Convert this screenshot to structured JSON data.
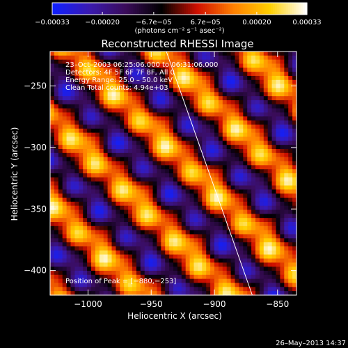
{
  "chart_data": {
    "type": "heatmap",
    "title": "Reconstructed RHESSI Image",
    "xlabel": "Heliocentric X (arcsec)",
    "ylabel": "Heliocentric Y (arcsec)",
    "xlim": [
      -1030,
      -835
    ],
    "ylim": [
      -420,
      -222
    ],
    "x_ticks": [
      -1000,
      -950,
      -900,
      -850
    ],
    "x_tick_labels": [
      "−1000",
      "−950",
      "−900",
      "−850"
    ],
    "y_ticks": [
      -250,
      -300,
      -350,
      -400
    ],
    "y_tick_labels": [
      "−250",
      "−300",
      "−350",
      "−400"
    ],
    "colorbar": {
      "range": [
        -0.00033,
        0.00033
      ],
      "tick_labels": [
        "−0.00033",
        "−0.00020",
        "−6.7e−05",
        "6.7e−05",
        "0.00020",
        "0.00033"
      ],
      "unit_label": "(photons cm⁻² s⁻¹ asec⁻²)"
    },
    "colors": [
      "#1020ff",
      "#3a1ab0",
      "#3a0c5a",
      "#000000",
      "#d01000",
      "#ff8000",
      "#ffd000",
      "#ffffff"
    ],
    "info_lines": [
      "23–Oct–2003 06:25:06.000  to  06:31:06.000",
      "Detectors: 4F 5F 6F 7F 8F, All 0",
      "Energy Range: 25.0 – 50.0 keV",
      "Clean      Total counts: 4.94e+03"
    ],
    "peak_label": "Position of Peak = [−880,−253]",
    "limb_line": {
      "start": [
        -938,
        -222
      ],
      "end": [
        -870,
        -420
      ]
    }
  },
  "footer": {
    "date": "26–May–2013 14:37"
  }
}
